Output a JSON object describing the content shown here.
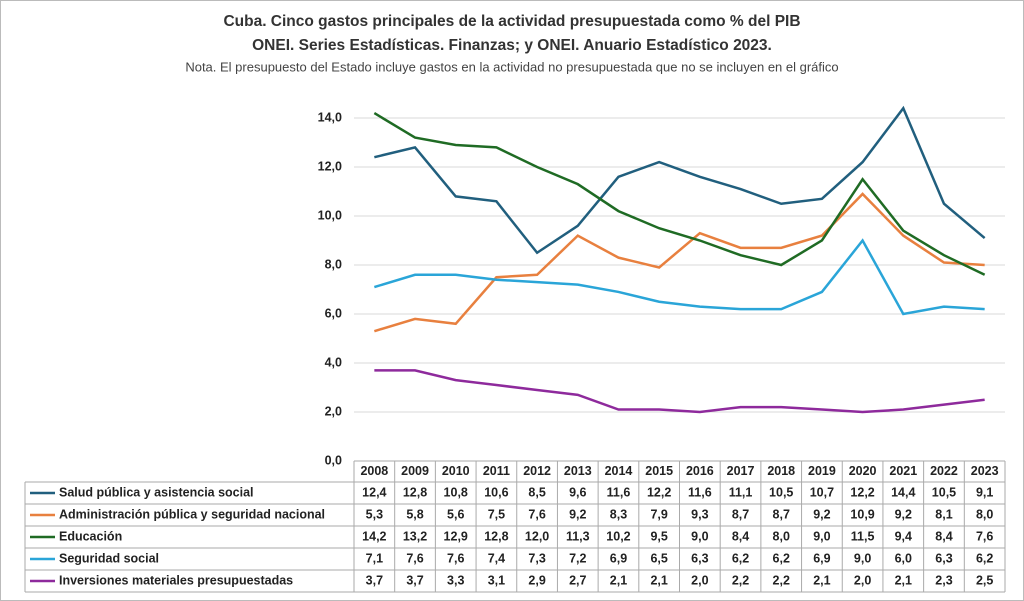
{
  "chart_data": {
    "type": "line",
    "title": "Cuba. Cinco gastos principales de la actividad presupuestada como % del PIB",
    "subtitle": "ONEI. Series Estadísticas. Finanzas; y ONEI. Anuario Estadístico 2023.",
    "note": "Nota. El presupuesto del Estado incluye gastos en la actividad no presupuestada que no se incluyen en el gráfico",
    "categories": [
      "2008",
      "2009",
      "2010",
      "2011",
      "2012",
      "2013",
      "2014",
      "2015",
      "2016",
      "2017",
      "2018",
      "2019",
      "2020",
      "2021",
      "2022",
      "2023"
    ],
    "series": [
      {
        "name": "Salud pública y asistencia social",
        "color": "#215f7e",
        "values": [
          12.4,
          12.8,
          10.8,
          10.6,
          8.5,
          9.6,
          11.6,
          12.2,
          11.6,
          11.1,
          10.5,
          10.7,
          12.2,
          14.4,
          10.5,
          9.1
        ],
        "value_labels": [
          "12,4",
          "12,8",
          "10,8",
          "10,6",
          "8,5",
          "9,6",
          "11,6",
          "12,2",
          "11,6",
          "11,1",
          "10,5",
          "10,7",
          "12,2",
          "14,4",
          "10,5",
          "9,1"
        ]
      },
      {
        "name": "Administración pública y seguridad nacional",
        "color": "#e8803f",
        "values": [
          5.3,
          5.8,
          5.6,
          7.5,
          7.6,
          9.2,
          8.3,
          7.9,
          9.3,
          8.7,
          8.7,
          9.2,
          10.9,
          9.2,
          8.1,
          8.0
        ],
        "value_labels": [
          "5,3",
          "5,8",
          "5,6",
          "7,5",
          "7,6",
          "9,2",
          "8,3",
          "7,9",
          "9,3",
          "8,7",
          "8,7",
          "9,2",
          "10,9",
          "9,2",
          "8,1",
          "8,0"
        ]
      },
      {
        "name": "Educación",
        "color": "#1f6b24",
        "values": [
          14.2,
          13.2,
          12.9,
          12.8,
          12.0,
          11.3,
          10.2,
          9.5,
          9.0,
          8.4,
          8.0,
          9.0,
          11.5,
          9.4,
          8.4,
          7.6
        ],
        "value_labels": [
          "14,2",
          "13,2",
          "12,9",
          "12,8",
          "12,0",
          "11,3",
          "10,2",
          "9,5",
          "9,0",
          "8,4",
          "8,0",
          "9,0",
          "11,5",
          "9,4",
          "8,4",
          "7,6"
        ]
      },
      {
        "name": "Seguridad social",
        "color": "#2aa5d8",
        "values": [
          7.1,
          7.6,
          7.6,
          7.4,
          7.3,
          7.2,
          6.9,
          6.5,
          6.3,
          6.2,
          6.2,
          6.9,
          9.0,
          6.0,
          6.3,
          6.2
        ],
        "value_labels": [
          "7,1",
          "7,6",
          "7,6",
          "7,4",
          "7,3",
          "7,2",
          "6,9",
          "6,5",
          "6,3",
          "6,2",
          "6,2",
          "6,9",
          "9,0",
          "6,0",
          "6,3",
          "6,2"
        ]
      },
      {
        "name": "Inversiones materiales presupuestadas",
        "color": "#8e2a9c",
        "values": [
          3.7,
          3.7,
          3.3,
          3.1,
          2.9,
          2.7,
          2.1,
          2.1,
          2.0,
          2.2,
          2.2,
          2.1,
          2.0,
          2.1,
          2.3,
          2.5
        ],
        "value_labels": [
          "3,7",
          "3,7",
          "3,3",
          "3,1",
          "2,9",
          "2,7",
          "2,1",
          "2,1",
          "2,0",
          "2,2",
          "2,2",
          "2,1",
          "2,0",
          "2,1",
          "2,3",
          "2,5"
        ]
      }
    ],
    "ylim": [
      0,
      15
    ],
    "yticks": [
      {
        "value": 0,
        "label": "0,0"
      },
      {
        "value": 2,
        "label": "2,0"
      },
      {
        "value": 4,
        "label": "4,0"
      },
      {
        "value": 6,
        "label": "6,0"
      },
      {
        "value": 8,
        "label": "8,0"
      },
      {
        "value": 10,
        "label": "10,0"
      },
      {
        "value": 12,
        "label": "12,0"
      },
      {
        "value": 14,
        "label": "14,0"
      }
    ],
    "grid": true
  }
}
